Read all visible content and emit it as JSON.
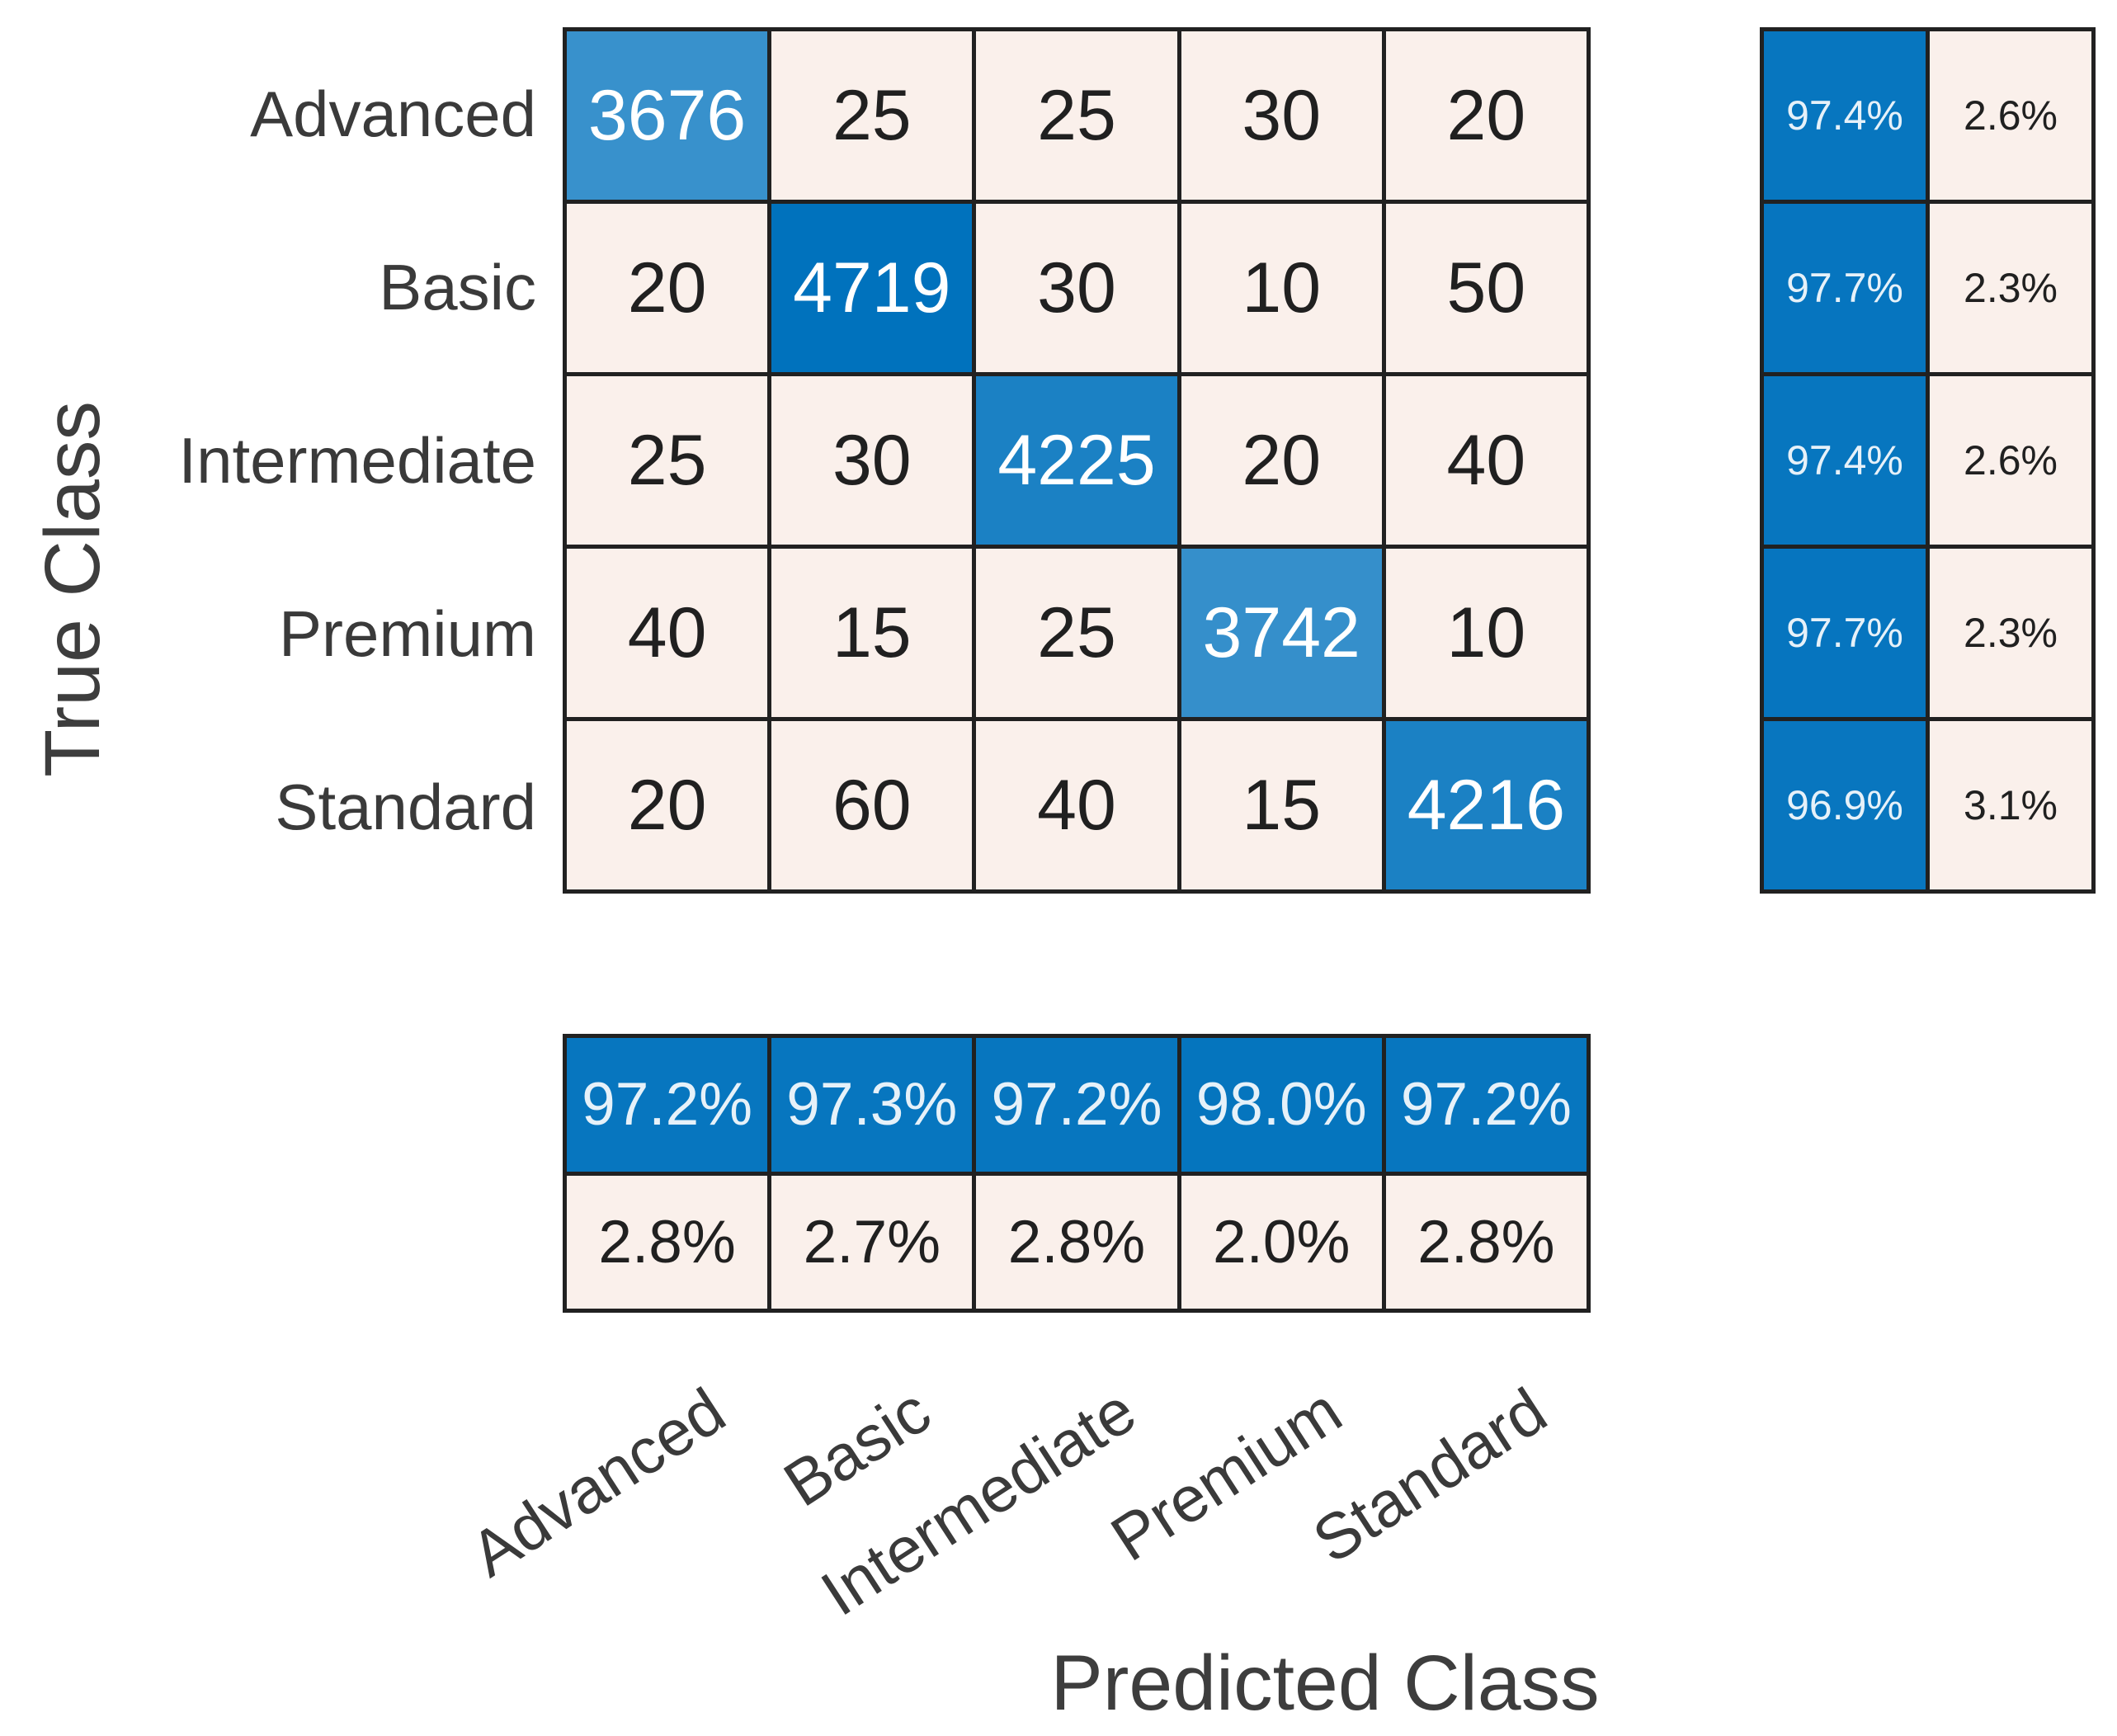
{
  "chart_data": {
    "type": "heatmap",
    "title": "",
    "xlabel": "Predicted Class",
    "ylabel": "True Class",
    "classes": [
      "Advanced",
      "Basic",
      "Intermediate",
      "Premium",
      "Standard"
    ],
    "matrix": [
      [
        3676,
        25,
        25,
        30,
        20
      ],
      [
        20,
        4719,
        30,
        10,
        50
      ],
      [
        25,
        30,
        4225,
        20,
        40
      ],
      [
        40,
        15,
        25,
        3742,
        10
      ],
      [
        20,
        60,
        40,
        15,
        4216
      ]
    ],
    "row_summary": [
      {
        "correct": "97.4%",
        "incorrect": "2.6%"
      },
      {
        "correct": "97.7%",
        "incorrect": "2.3%"
      },
      {
        "correct": "97.4%",
        "incorrect": "2.6%"
      },
      {
        "correct": "97.7%",
        "incorrect": "2.3%"
      },
      {
        "correct": "96.9%",
        "incorrect": "3.1%"
      }
    ],
    "col_summary": [
      {
        "correct": "97.2%",
        "incorrect": "2.8%"
      },
      {
        "correct": "97.3%",
        "incorrect": "2.7%"
      },
      {
        "correct": "97.2%",
        "incorrect": "2.8%"
      },
      {
        "correct": "98.0%",
        "incorrect": "2.0%"
      },
      {
        "correct": "97.2%",
        "incorrect": "2.8%"
      }
    ],
    "layout": {
      "legend": "none",
      "grid": "on",
      "x_tick_rotation_deg": -33,
      "summary_position": "right-and-bottom"
    },
    "colors": {
      "diagonal_base": "#0072BD",
      "off_diagonal_bg": "#FAF0EB",
      "grid_line": "#212121",
      "cell_text_dark": "#202020",
      "cell_text_light": "#FFFFFF",
      "summary_text_light": "rgba(255,255,255,0.9)",
      "tick_text": "#3A3A3A",
      "axis_label_text": "#3D3D3D",
      "background": "#FFFFFF"
    }
  }
}
